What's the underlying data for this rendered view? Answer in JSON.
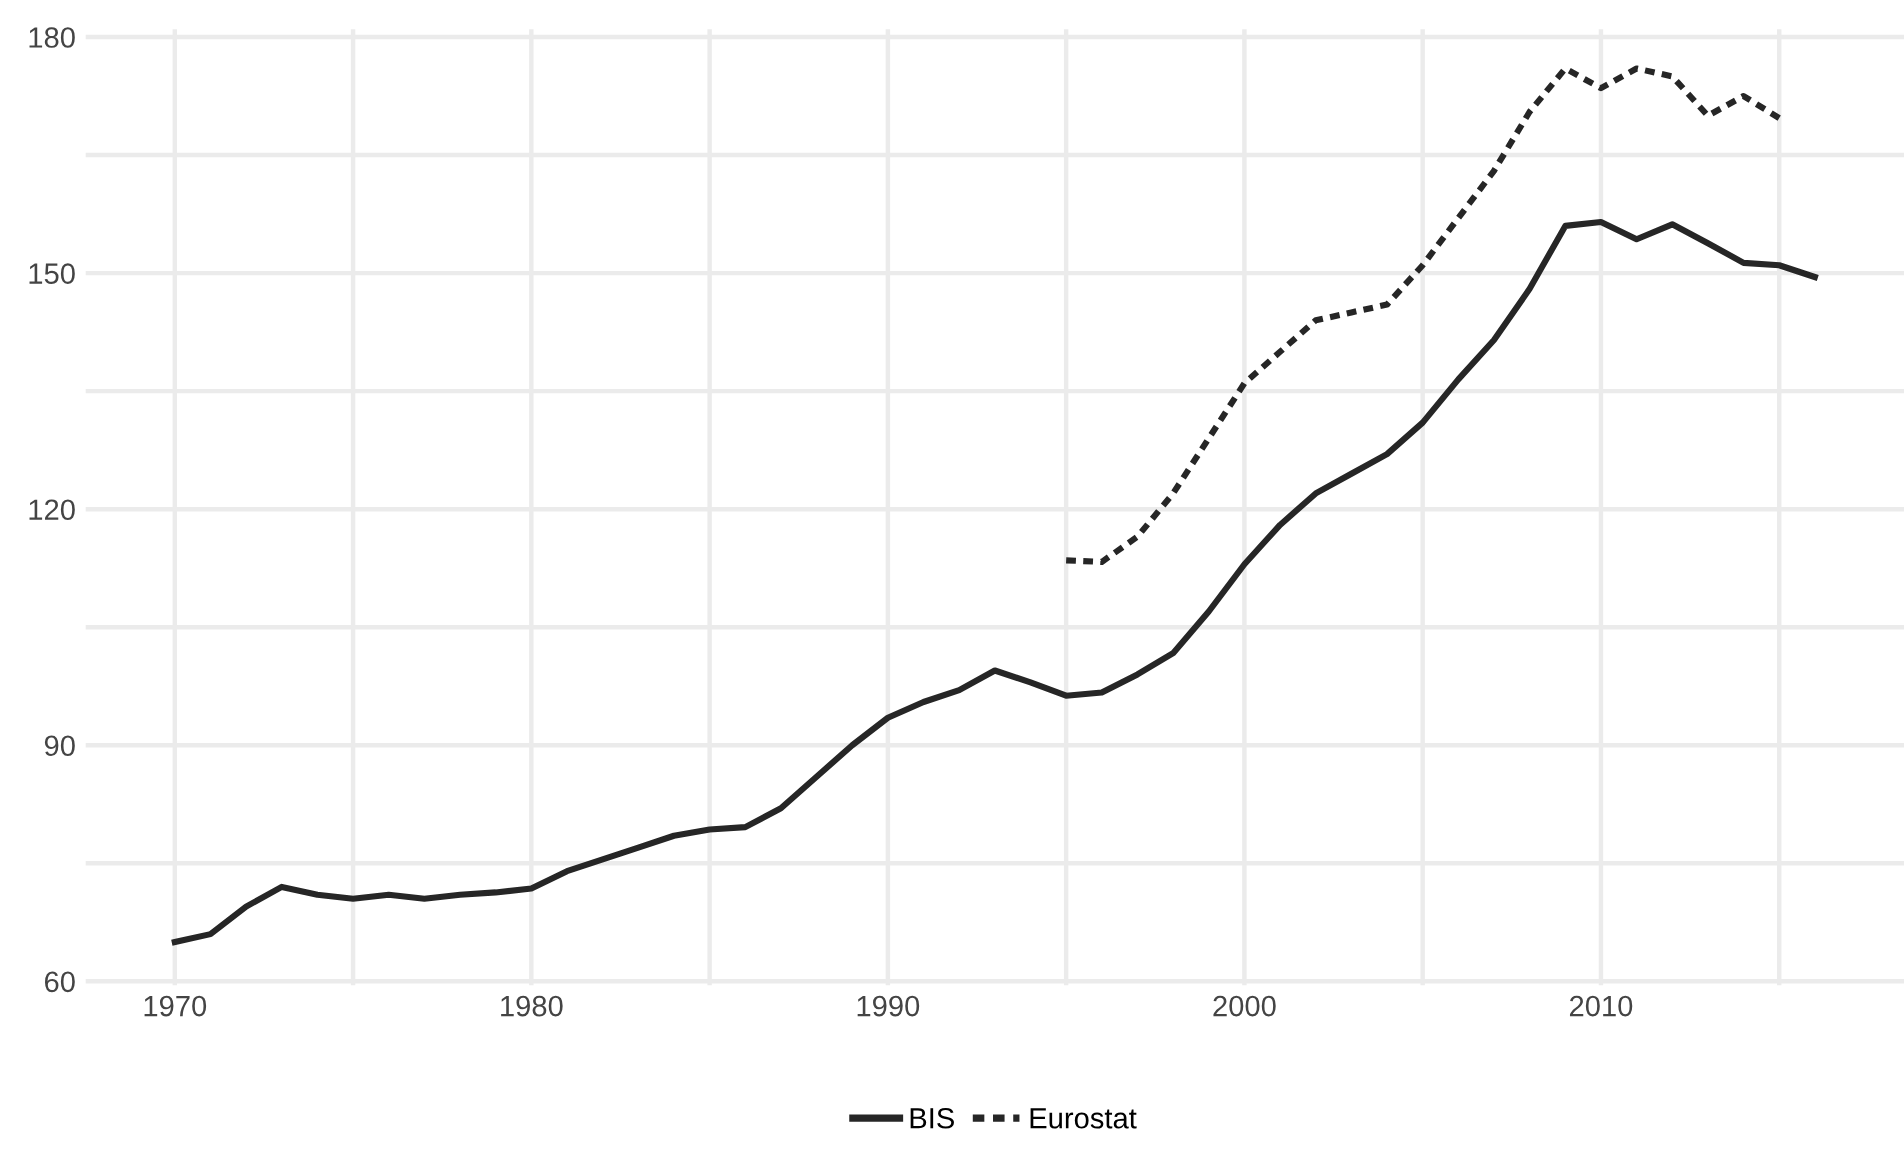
{
  "chart_data": {
    "type": "line",
    "x": [
      1970,
      1971,
      1972,
      1973,
      1974,
      1975,
      1976,
      1977,
      1978,
      1979,
      1980,
      1981,
      1982,
      1983,
      1984,
      1985,
      1986,
      1987,
      1988,
      1989,
      1990,
      1991,
      1992,
      1993,
      1994,
      1995,
      1996,
      1997,
      1998,
      1999,
      2000,
      2001,
      2002,
      2003,
      2004,
      2005,
      2006,
      2007,
      2008,
      2009,
      2010,
      2011,
      2012,
      2013,
      2014,
      2015,
      2016
    ],
    "series": [
      {
        "name": "BIS",
        "color": "#262626",
        "line_style": "solid",
        "values": [
          65,
          66,
          69.5,
          72,
          71,
          70.5,
          71,
          70.5,
          71,
          71.3,
          71.8,
          74,
          75.5,
          77,
          78.5,
          79.3,
          79.6,
          82,
          86,
          90,
          93.5,
          95.5,
          97,
          99.5,
          98,
          96.3,
          96.7,
          99,
          101.7,
          107,
          113,
          118,
          122,
          124.5,
          127,
          131,
          136.5,
          141.5,
          148,
          156,
          156.5,
          154.3,
          156.2,
          153.8,
          151.3,
          151,
          149.5
        ]
      },
      {
        "name": "Eurostat",
        "color": "#262626",
        "line_style": "dotted",
        "values": [
          null,
          null,
          null,
          null,
          null,
          null,
          null,
          null,
          null,
          null,
          null,
          null,
          null,
          null,
          null,
          null,
          null,
          null,
          null,
          null,
          null,
          null,
          null,
          null,
          null,
          113.5,
          113.3,
          116.5,
          122,
          129,
          136,
          140,
          144,
          145,
          146,
          151,
          157,
          163,
          170.5,
          176,
          173.5,
          176,
          175,
          170,
          172.5,
          169.7,
          null
        ]
      }
    ],
    "xlim": [
      1967.5,
      2018.5
    ],
    "ylim": [
      59.5,
      181
    ],
    "xticks": [
      1970,
      {
        "value": 1975,
        "label": null
      },
      1980,
      {
        "value": 1985,
        "label": null
      },
      1990,
      {
        "value": 1995,
        "label": null
      },
      2000,
      {
        "value": 2005,
        "label": null
      },
      2010,
      {
        "value": 2015,
        "label": null
      }
    ],
    "yticks": [
      60,
      {
        "value": 75,
        "label": null
      },
      90,
      {
        "value": 105,
        "label": null
      },
      120,
      {
        "value": 135,
        "label": null
      },
      150,
      {
        "value": 165,
        "label": null
      },
      180
    ],
    "grid": true,
    "legend": "bottom"
  }
}
